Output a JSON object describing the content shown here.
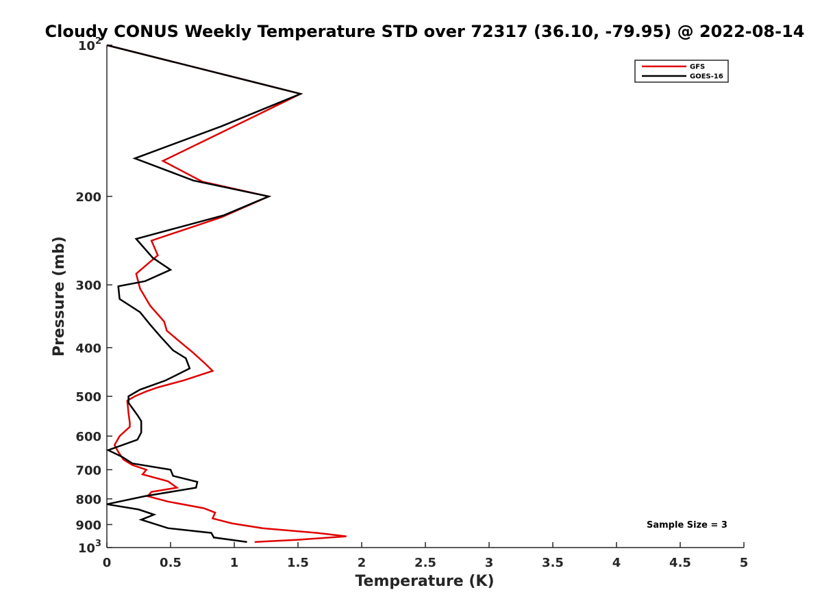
{
  "chart_data": {
    "type": "line",
    "title": "Cloudy CONUS Weekly Temperature STD over 72317 (36.10, -79.95) @ 2022-08-14",
    "xlabel": "Temperature (K)",
    "ylabel": "Pressure (mb)",
    "xlim": [
      0,
      5
    ],
    "ylim": [
      100,
      1000
    ],
    "y_scale": "log",
    "y_reversed": true,
    "grid": false,
    "legend_position": "top-right",
    "x_ticks": [
      {
        "value": 0,
        "label": "0"
      },
      {
        "value": 0.5,
        "label": "0.5"
      },
      {
        "value": 1,
        "label": "1"
      },
      {
        "value": 1.5,
        "label": "1.5"
      },
      {
        "value": 2,
        "label": "2"
      },
      {
        "value": 2.5,
        "label": "2.5"
      },
      {
        "value": 3,
        "label": "3"
      },
      {
        "value": 3.5,
        "label": "3.5"
      },
      {
        "value": 4,
        "label": "4"
      },
      {
        "value": 4.5,
        "label": "4.5"
      },
      {
        "value": 5,
        "label": "5"
      }
    ],
    "y_ticks": [
      {
        "value": 100,
        "base": "10",
        "sup": "2"
      },
      {
        "value": 200,
        "base": "200",
        "sup": ""
      },
      {
        "value": 300,
        "base": "300",
        "sup": ""
      },
      {
        "value": 400,
        "base": "400",
        "sup": ""
      },
      {
        "value": 500,
        "base": "500",
        "sup": ""
      },
      {
        "value": 600,
        "base": "600",
        "sup": ""
      },
      {
        "value": 700,
        "base": "700",
        "sup": ""
      },
      {
        "value": 800,
        "base": "800",
        "sup": ""
      },
      {
        "value": 900,
        "base": "900",
        "sup": ""
      },
      {
        "value": 1000,
        "base": "10",
        "sup": "3"
      }
    ],
    "annotation": "Sample Size = 3",
    "series": [
      {
        "name": "GFS",
        "color": "#e00000",
        "points": [
          [
            0.0,
            100
          ],
          [
            1.52,
            125
          ],
          [
            0.88,
            150
          ],
          [
            0.44,
            170
          ],
          [
            0.75,
            187
          ],
          [
            1.27,
            200
          ],
          [
            0.9,
            220
          ],
          [
            0.35,
            245
          ],
          [
            0.4,
            262
          ],
          [
            0.23,
            285
          ],
          [
            0.26,
            305
          ],
          [
            0.34,
            330
          ],
          [
            0.45,
            355
          ],
          [
            0.47,
            370
          ],
          [
            0.55,
            385
          ],
          [
            0.68,
            410
          ],
          [
            0.77,
            430
          ],
          [
            0.83,
            445
          ],
          [
            0.6,
            465
          ],
          [
            0.4,
            480
          ],
          [
            0.3,
            490
          ],
          [
            0.22,
            500
          ],
          [
            0.16,
            510
          ],
          [
            0.17,
            540
          ],
          [
            0.18,
            565
          ],
          [
            0.18,
            575
          ],
          [
            0.1,
            600
          ],
          [
            0.06,
            625
          ],
          [
            0.09,
            645
          ],
          [
            0.13,
            668
          ],
          [
            0.2,
            685
          ],
          [
            0.31,
            700
          ],
          [
            0.28,
            715
          ],
          [
            0.48,
            738
          ],
          [
            0.55,
            760
          ],
          [
            0.35,
            775
          ],
          [
            0.32,
            790
          ],
          [
            0.48,
            810
          ],
          [
            0.76,
            835
          ],
          [
            0.85,
            852
          ],
          [
            0.83,
            875
          ],
          [
            0.98,
            895
          ],
          [
            1.22,
            915
          ],
          [
            1.65,
            935
          ],
          [
            1.88,
            950
          ],
          [
            1.5,
            965
          ],
          [
            1.16,
            975
          ]
        ]
      },
      {
        "name": "GOES-16",
        "color": "#000000",
        "points": [
          [
            0.0,
            100
          ],
          [
            1.52,
            125
          ],
          [
            0.9,
            145
          ],
          [
            0.22,
            168
          ],
          [
            0.68,
            186
          ],
          [
            1.27,
            200
          ],
          [
            0.92,
            218
          ],
          [
            0.23,
            243
          ],
          [
            0.36,
            265
          ],
          [
            0.5,
            280
          ],
          [
            0.3,
            295
          ],
          [
            0.09,
            302
          ],
          [
            0.1,
            320
          ],
          [
            0.26,
            340
          ],
          [
            0.34,
            360
          ],
          [
            0.42,
            380
          ],
          [
            0.52,
            405
          ],
          [
            0.62,
            420
          ],
          [
            0.65,
            440
          ],
          [
            0.46,
            465
          ],
          [
            0.26,
            485
          ],
          [
            0.17,
            500
          ],
          [
            0.17,
            515
          ],
          [
            0.24,
            545
          ],
          [
            0.27,
            560
          ],
          [
            0.27,
            590
          ],
          [
            0.24,
            610
          ],
          [
            0.01,
            640
          ],
          [
            0.12,
            660
          ],
          [
            0.2,
            680
          ],
          [
            0.5,
            700
          ],
          [
            0.52,
            720
          ],
          [
            0.71,
            740
          ],
          [
            0.7,
            760
          ],
          [
            0.3,
            790
          ],
          [
            0.0,
            820
          ],
          [
            0.25,
            840
          ],
          [
            0.37,
            860
          ],
          [
            0.27,
            880
          ],
          [
            0.48,
            915
          ],
          [
            0.82,
            935
          ],
          [
            0.84,
            955
          ],
          [
            1.1,
            975
          ]
        ]
      }
    ]
  }
}
